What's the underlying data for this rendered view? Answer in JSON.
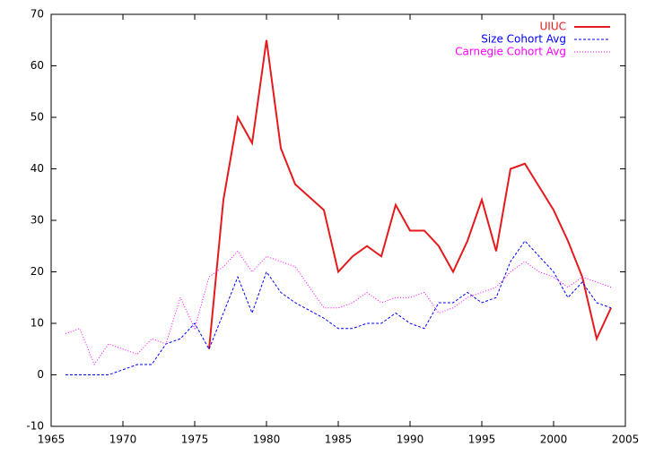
{
  "chart_data": {
    "type": "line",
    "x": [
      1966,
      1967,
      1968,
      1969,
      1970,
      1971,
      1972,
      1973,
      1974,
      1975,
      1976,
      1977,
      1978,
      1979,
      1980,
      1981,
      1982,
      1983,
      1984,
      1985,
      1986,
      1987,
      1988,
      1989,
      1990,
      1991,
      1992,
      1993,
      1994,
      1995,
      1996,
      1997,
      1998,
      1999,
      2000,
      2001,
      2002,
      2003,
      2004
    ],
    "series": [
      {
        "name": "UIUC",
        "color": "#e41a1c",
        "dash": "solid",
        "values": [
          null,
          null,
          null,
          null,
          null,
          null,
          null,
          null,
          null,
          null,
          5,
          34,
          50,
          45,
          65,
          44,
          37,
          34.5,
          32,
          20,
          23,
          25,
          23,
          33,
          28,
          28,
          25,
          20,
          26,
          34,
          24,
          40,
          41,
          36.5,
          32,
          26,
          19,
          7,
          13
        ]
      },
      {
        "name": "Size Cohort Avg",
        "color": "#0000ff",
        "dash": "dashed",
        "values": [
          0,
          0,
          0,
          0,
          1,
          2,
          2,
          6,
          7,
          10,
          5,
          12,
          19,
          12,
          20,
          16,
          14,
          12.5,
          11,
          9,
          9,
          10,
          10,
          12,
          10,
          9,
          14,
          14,
          16,
          14,
          15,
          22,
          26,
          23,
          20,
          15,
          18,
          14,
          13
        ]
      },
      {
        "name": "Carnegie Cohort Avg",
        "color": "#ff00ff",
        "dash": "dotted",
        "values": [
          8,
          9,
          2,
          6,
          5,
          4,
          7,
          6,
          15,
          9,
          19,
          21,
          24,
          20,
          23,
          22,
          21,
          17,
          13,
          13,
          14,
          16,
          14,
          15,
          15,
          16,
          12,
          13,
          15,
          16,
          17,
          20,
          22,
          20,
          19,
          17,
          19,
          18,
          17
        ]
      }
    ],
    "xlim": [
      1965,
      2005
    ],
    "xticks": [
      1965,
      1970,
      1975,
      1980,
      1985,
      1990,
      1995,
      2000,
      2005
    ],
    "ylim": [
      -10,
      70
    ],
    "yticks": [
      -10,
      0,
      10,
      20,
      30,
      40,
      50,
      60,
      70
    ],
    "legend": "top-right"
  }
}
